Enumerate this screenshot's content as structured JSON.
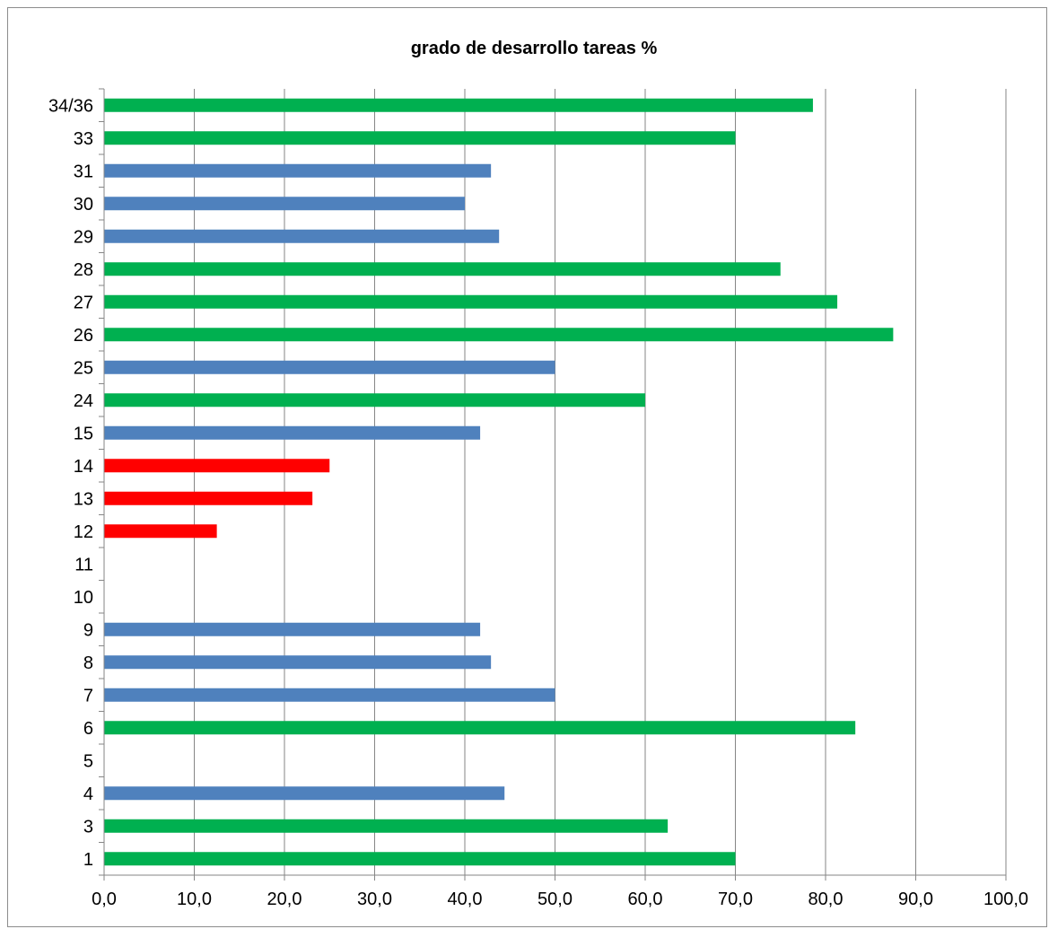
{
  "chart_data": {
    "type": "bar",
    "orientation": "horizontal",
    "title": "grado de desarrollo tareas %",
    "xlabel": "",
    "ylabel": "",
    "categories": [
      "1",
      "3",
      "4",
      "5",
      "6",
      "7",
      "8",
      "9",
      "10",
      "11",
      "12",
      "13",
      "14",
      "15",
      "24",
      "25",
      "26",
      "27",
      "28",
      "29",
      "30",
      "31",
      "33",
      "34/36"
    ],
    "values": [
      70.0,
      62.5,
      44.4,
      null,
      83.3,
      50.0,
      42.9,
      41.7,
      null,
      null,
      12.5,
      23.1,
      25.0,
      41.7,
      60.0,
      50.0,
      87.5,
      81.3,
      75.0,
      43.8,
      40.0,
      42.9,
      70.0,
      78.6
    ],
    "bar_colors": [
      "#00b050",
      "#00b050",
      "#4f81bd",
      "#4f81bd",
      "#00b050",
      "#4f81bd",
      "#4f81bd",
      "#4f81bd",
      "#4f81bd",
      "#4f81bd",
      "#ff0000",
      "#ff0000",
      "#ff0000",
      "#4f81bd",
      "#00b050",
      "#4f81bd",
      "#00b050",
      "#00b050",
      "#00b050",
      "#4f81bd",
      "#4f81bd",
      "#4f81bd",
      "#00b050",
      "#00b050"
    ],
    "xlim": [
      0,
      100
    ],
    "x_ticks": [
      "0,0",
      "10,0",
      "20,0",
      "30,0",
      "40,0",
      "50,0",
      "60,0",
      "70,0",
      "80,0",
      "90,0",
      "100,0"
    ],
    "grid": "vertical",
    "legend": "none",
    "gridline_color": "#868686",
    "axis_color": "#868686"
  }
}
